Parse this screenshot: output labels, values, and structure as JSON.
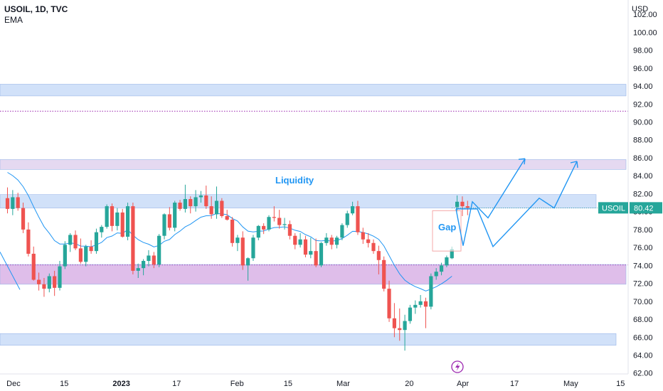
{
  "legend": {
    "symbol_line": "USOIL, 1D, TVC",
    "indicator": "EMA"
  },
  "currency": "USD",
  "price_badge": {
    "label": "USOIL",
    "value": "80.42"
  },
  "annotations": {
    "liquidity": "Liquidity",
    "gap": "Gap"
  },
  "colors": {
    "up": "#26a69a",
    "down": "#ef5350",
    "ema": "#2196f3",
    "zone_blue": "#c9dcf8",
    "zone_purple": "#d9b3e6",
    "zone_lavender": "#e1d2ef",
    "projection": "#2196f3",
    "badge": "#26a69a"
  },
  "icons": {
    "bottom_center": "lightning-icon"
  },
  "chart_data": {
    "type": "candlestick",
    "title": "USOIL, 1D, TVC",
    "ylim": [
      62,
      104
    ],
    "y_ticks": [
      "102.00",
      "100.00",
      "98.00",
      "96.00",
      "94.00",
      "92.00",
      "90.00",
      "88.00",
      "86.00",
      "84.00",
      "82.00",
      "80.00",
      "78.00",
      "76.00",
      "74.00",
      "72.00",
      "70.00",
      "68.00",
      "66.00",
      "64.00",
      "62.00"
    ],
    "x_ticks": [
      {
        "label": "Dec",
        "bold": false,
        "t": 0.5
      },
      {
        "label": "15",
        "bold": false,
        "t": 10.7
      },
      {
        "label": "2023",
        "bold": true,
        "t": 20.8
      },
      {
        "label": "17",
        "bold": false,
        "t": 32.2
      },
      {
        "label": "Feb",
        "bold": false,
        "t": 43.3
      },
      {
        "label": "15",
        "bold": false,
        "t": 53.5
      },
      {
        "label": "Mar",
        "bold": false,
        "t": 63.6
      },
      {
        "label": "20",
        "bold": false,
        "t": 76.7
      },
      {
        "label": "Apr",
        "bold": false,
        "t": 86.6
      },
      {
        "label": "17",
        "bold": false,
        "t": 96.8
      },
      {
        "label": "May",
        "bold": false,
        "t": 107.0
      },
      {
        "label": "15",
        "bold": false,
        "t": 117.1
      }
    ],
    "candles": [
      [
        81.5,
        82.7,
        79.8,
        80.3
      ],
      [
        80.3,
        82.4,
        79.6,
        81.6
      ],
      [
        81.6,
        82.1,
        80.1,
        80.4
      ],
      [
        80.4,
        81.0,
        77.6,
        78.0
      ],
      [
        78.0,
        78.8,
        75.0,
        75.3
      ],
      [
        75.3,
        76.1,
        72.3,
        72.4
      ],
      [
        72.4,
        73.2,
        71.2,
        71.9
      ],
      [
        71.9,
        72.6,
        70.5,
        71.4
      ],
      [
        71.4,
        73.1,
        71.0,
        72.8
      ],
      [
        72.8,
        73.4,
        70.6,
        71.5
      ],
      [
        71.5,
        74.5,
        71.2,
        73.9
      ],
      [
        73.9,
        76.7,
        73.6,
        76.3
      ],
      [
        76.3,
        77.6,
        75.5,
        77.4
      ],
      [
        77.4,
        77.9,
        75.7,
        75.9
      ],
      [
        75.9,
        77.0,
        74.2,
        74.4
      ],
      [
        74.4,
        76.3,
        73.9,
        76.1
      ],
      [
        76.1,
        76.8,
        75.3,
        75.6
      ],
      [
        75.6,
        78.1,
        75.3,
        77.7
      ],
      [
        77.7,
        78.5,
        77.1,
        78.3
      ],
      [
        78.3,
        80.8,
        78.1,
        80.6
      ],
      [
        80.6,
        80.9,
        77.8,
        78.4
      ],
      [
        78.4,
        80.4,
        77.9,
        79.9
      ],
      [
        79.9,
        80.3,
        77.1,
        77.2
      ],
      [
        77.2,
        81.0,
        76.8,
        80.6
      ],
      [
        80.6,
        81.0,
        73.0,
        73.4
      ],
      [
        73.4,
        74.2,
        72.6,
        73.7
      ],
      [
        73.7,
        74.7,
        72.9,
        74.5
      ],
      [
        74.5,
        75.7,
        73.9,
        75.1
      ],
      [
        75.1,
        75.5,
        73.7,
        74.1
      ],
      [
        74.1,
        77.5,
        73.8,
        77.3
      ],
      [
        77.3,
        79.8,
        76.9,
        79.7
      ],
      [
        79.7,
        80.5,
        77.9,
        78.2
      ],
      [
        78.2,
        81.2,
        77.8,
        81.0
      ],
      [
        81.0,
        81.3,
        80.1,
        80.3
      ],
      [
        80.3,
        83.0,
        79.9,
        81.4
      ],
      [
        81.4,
        81.7,
        79.8,
        80.6
      ],
      [
        80.6,
        82.4,
        80.0,
        81.6
      ],
      [
        81.6,
        82.3,
        81.0,
        81.8
      ],
      [
        81.8,
        82.9,
        80.3,
        80.6
      ],
      [
        80.6,
        81.7,
        79.2,
        79.7
      ],
      [
        79.7,
        82.8,
        79.2,
        81.2
      ],
      [
        81.2,
        81.5,
        79.3,
        79.5
      ],
      [
        79.5,
        80.2,
        79.0,
        79.1
      ],
      [
        79.1,
        79.4,
        76.1,
        76.5
      ],
      [
        76.5,
        77.4,
        75.6,
        77.1
      ],
      [
        77.1,
        77.8,
        73.5,
        74.0
      ],
      [
        74.0,
        74.9,
        72.3,
        74.8
      ],
      [
        74.8,
        77.4,
        74.5,
        77.1
      ],
      [
        77.1,
        78.5,
        76.8,
        78.4
      ],
      [
        78.4,
        78.7,
        77.5,
        78.0
      ],
      [
        78.0,
        79.6,
        77.8,
        79.4
      ],
      [
        79.4,
        80.6,
        78.9,
        79.3
      ],
      [
        79.3,
        80.2,
        78.1,
        78.5
      ],
      [
        78.5,
        79.3,
        78.0,
        78.6
      ],
      [
        78.6,
        79.0,
        76.9,
        77.3
      ],
      [
        77.3,
        77.6,
        75.8,
        76.3
      ],
      [
        76.3,
        77.6,
        76.0,
        76.9
      ],
      [
        76.9,
        77.3,
        74.9,
        75.2
      ],
      [
        75.2,
        77.1,
        74.8,
        75.6
      ],
      [
        75.6,
        77.0,
        73.8,
        74.0
      ],
      [
        74.0,
        76.6,
        73.8,
        76.5
      ],
      [
        76.5,
        77.6,
        76.2,
        77.1
      ],
      [
        77.1,
        77.4,
        75.8,
        76.3
      ],
      [
        76.3,
        77.3,
        75.9,
        77.1
      ],
      [
        77.1,
        78.7,
        76.8,
        78.5
      ],
      [
        78.5,
        80.1,
        78.2,
        79.8
      ],
      [
        79.8,
        81.1,
        79.6,
        80.6
      ],
      [
        80.6,
        81.2,
        77.4,
        77.7
      ],
      [
        77.7,
        78.2,
        76.4,
        76.9
      ],
      [
        76.9,
        77.6,
        76.0,
        76.5
      ],
      [
        76.5,
        76.9,
        75.3,
        75.6
      ],
      [
        75.6,
        76.2,
        73.0,
        74.6
      ],
      [
        74.6,
        75.0,
        71.1,
        71.4
      ],
      [
        71.4,
        72.3,
        67.7,
        68.1
      ],
      [
        68.1,
        69.8,
        66.0,
        67.0
      ],
      [
        67.0,
        69.2,
        65.6,
        66.8
      ],
      [
        66.8,
        68.5,
        64.5,
        67.8
      ],
      [
        67.8,
        69.6,
        67.5,
        69.3
      ],
      [
        69.3,
        70.1,
        68.6,
        69.6
      ],
      [
        69.6,
        70.7,
        69.3,
        70.0
      ],
      [
        70.0,
        70.4,
        67.0,
        69.4
      ],
      [
        69.4,
        73.1,
        69.1,
        72.8
      ],
      [
        72.8,
        73.7,
        72.4,
        73.3
      ],
      [
        73.3,
        74.3,
        72.9,
        74.0
      ],
      [
        74.0,
        75.1,
        73.8,
        74.9
      ],
      [
        74.8,
        76.1,
        74.7,
        75.8
      ],
      [
        80.5,
        81.8,
        80.0,
        81.1
      ],
      [
        81.1,
        81.7,
        79.5,
        80.6
      ],
      [
        80.6,
        81.2,
        79.6,
        80.42
      ]
    ]
  }
}
